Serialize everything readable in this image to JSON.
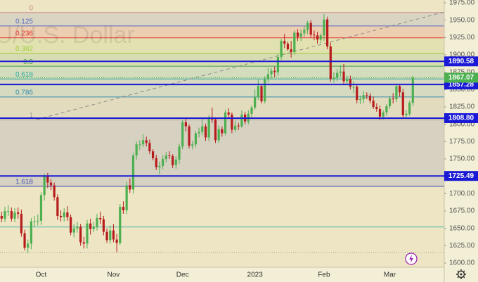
{
  "chart_data": {
    "type": "candlestick",
    "watermark": "XAU/U.S. Dollar",
    "ylim": [
      1594,
      1979
    ],
    "yticks": [
      {
        "value": 1600,
        "label": "1600.00"
      },
      {
        "value": 1625,
        "label": "1625.00"
      },
      {
        "value": 1650,
        "label": "1650.00"
      },
      {
        "value": 1675,
        "label": "1675.00"
      },
      {
        "value": 1700,
        "label": "1700.00"
      },
      {
        "value": 1725,
        "label": "1725.00"
      },
      {
        "value": 1750,
        "label": "1750.00"
      },
      {
        "value": 1775,
        "label": "1775.00"
      },
      {
        "value": 1800,
        "label": "1800.00"
      },
      {
        "value": 1825,
        "label": "1825.00"
      },
      {
        "value": 1850,
        "label": "1850.00"
      },
      {
        "value": 1875,
        "label": "1875.00"
      },
      {
        "value": 1900,
        "label": "1900.00"
      },
      {
        "value": 1925,
        "label": "1925.00"
      },
      {
        "value": 1950,
        "label": "1950.00"
      },
      {
        "value": 1975,
        "label": "1975.00"
      }
    ],
    "categories": [
      null,
      null,
      null,
      null,
      null,
      null,
      null,
      null,
      null,
      null,
      null,
      null,
      "Oct",
      null,
      null,
      null,
      null,
      null,
      null,
      null,
      null,
      null,
      null,
      null,
      null,
      null,
      null,
      null,
      null,
      null,
      null,
      null,
      null,
      null,
      "Nov",
      null,
      null,
      null,
      null,
      null,
      null,
      null,
      null,
      null,
      null,
      null,
      null,
      null,
      null,
      null,
      null,
      null,
      null,
      null,
      null,
      "Dec",
      null,
      null,
      null,
      null,
      null,
      null,
      null,
      null,
      null,
      null,
      null,
      null,
      null,
      null,
      null,
      null,
      null,
      null,
      null,
      null,
      null,
      "2023",
      null,
      null,
      null,
      null,
      null,
      null,
      null,
      null,
      null,
      null,
      null,
      null,
      null,
      null,
      null,
      null,
      null,
      null,
      null,
      null,
      "Feb",
      null,
      null,
      null,
      null,
      null,
      null,
      null,
      null,
      null,
      null,
      null,
      null,
      null,
      null,
      null,
      null,
      null,
      null,
      null,
      "Mar",
      null,
      null,
      null,
      null,
      null,
      null,
      null
    ],
    "candles": {
      "up_color": "#4caf50",
      "down_color": "#b71c1c",
      "open": [
        1668,
        1664,
        1675,
        1675,
        1664,
        1673,
        1671,
        1643,
        1622,
        1628,
        1660,
        1660,
        1661,
        1698,
        1725,
        1716,
        1712,
        1695,
        1668,
        1666,
        1673,
        1666,
        1644,
        1650,
        1652,
        1630,
        1628,
        1657,
        1649,
        1652,
        1665,
        1663,
        1645,
        1633,
        1647,
        1634,
        1629,
        1681,
        1676,
        1712,
        1706,
        1755,
        1771,
        1771,
        1777,
        1773,
        1761,
        1751,
        1738,
        1740,
        1750,
        1755,
        1754,
        1741,
        1749,
        1768,
        1803,
        1797,
        1769,
        1771,
        1787,
        1789,
        1797,
        1781,
        1810,
        1807,
        1777,
        1793,
        1787,
        1817,
        1814,
        1792,
        1798,
        1797,
        1814,
        1804,
        1815,
        1824,
        1839,
        1855,
        1833,
        1865,
        1872,
        1877,
        1875,
        1897,
        1920,
        1916,
        1908,
        1904,
        1932,
        1926,
        1931,
        1936,
        1946,
        1929,
        1928,
        1922,
        1928,
        1951,
        1912,
        1865,
        1867,
        1874,
        1876,
        1862,
        1865,
        1854,
        1854,
        1835,
        1836,
        1842,
        1841,
        1834,
        1825,
        1822,
        1811,
        1817,
        1826,
        1837,
        1836,
        1855,
        1846,
        1813,
        1815,
        1831
      ],
      "high": [
        1674,
        1681,
        1683,
        1680,
        1679,
        1680,
        1677,
        1648,
        1634,
        1665,
        1668,
        1670,
        1702,
        1729,
        1730,
        1721,
        1716,
        1699,
        1676,
        1679,
        1682,
        1670,
        1656,
        1659,
        1656,
        1638,
        1662,
        1664,
        1659,
        1671,
        1674,
        1668,
        1650,
        1654,
        1656,
        1642,
        1685,
        1689,
        1717,
        1722,
        1759,
        1775,
        1777,
        1786,
        1782,
        1778,
        1764,
        1756,
        1746,
        1755,
        1760,
        1761,
        1757,
        1754,
        1772,
        1806,
        1810,
        1800,
        1776,
        1790,
        1795,
        1808,
        1801,
        1813,
        1824,
        1810,
        1798,
        1797,
        1821,
        1823,
        1817,
        1805,
        1802,
        1820,
        1818,
        1820,
        1827,
        1850,
        1865,
        1858,
        1869,
        1881,
        1881,
        1883,
        1901,
        1923,
        1930,
        1919,
        1920,
        1935,
        1937,
        1937,
        1942,
        1949,
        1950,
        1935,
        1933,
        1931,
        1959,
        1955,
        1918,
        1875,
        1880,
        1885,
        1887,
        1870,
        1870,
        1862,
        1858,
        1841,
        1848,
        1846,
        1845,
        1840,
        1830,
        1827,
        1820,
        1829,
        1841,
        1845,
        1857,
        1858,
        1851,
        1820,
        1834,
        1870
      ],
      "low": [
        1659,
        1659,
        1668,
        1660,
        1659,
        1664,
        1638,
        1618,
        1614,
        1620,
        1652,
        1654,
        1655,
        1690,
        1708,
        1705,
        1690,
        1662,
        1660,
        1660,
        1661,
        1640,
        1637,
        1644,
        1625,
        1621,
        1621,
        1641,
        1645,
        1647,
        1656,
        1640,
        1629,
        1628,
        1630,
        1616,
        1626,
        1671,
        1670,
        1701,
        1700,
        1749,
        1763,
        1767,
        1768,
        1757,
        1748,
        1734,
        1728,
        1735,
        1745,
        1750,
        1737,
        1736,
        1743,
        1764,
        1790,
        1765,
        1764,
        1767,
        1781,
        1784,
        1776,
        1776,
        1802,
        1773,
        1773,
        1782,
        1784,
        1808,
        1787,
        1789,
        1792,
        1795,
        1800,
        1800,
        1810,
        1821,
        1835,
        1830,
        1830,
        1860,
        1866,
        1868,
        1870,
        1893,
        1910,
        1906,
        1896,
        1900,
        1920,
        1920,
        1926,
        1930,
        1925,
        1921,
        1916,
        1917,
        1920,
        1908,
        1861,
        1860,
        1862,
        1868,
        1858,
        1858,
        1850,
        1845,
        1830,
        1829,
        1830,
        1836,
        1830,
        1822,
        1818,
        1806,
        1807,
        1812,
        1822,
        1830,
        1832,
        1840,
        1810,
        1809,
        1812,
        1826
      ],
      "close": [
        1664,
        1675,
        1675,
        1664,
        1673,
        1671,
        1643,
        1622,
        1628,
        1660,
        1660,
        1661,
        1698,
        1725,
        1716,
        1712,
        1695,
        1668,
        1666,
        1673,
        1666,
        1644,
        1650,
        1652,
        1630,
        1628,
        1657,
        1649,
        1652,
        1665,
        1663,
        1645,
        1633,
        1647,
        1634,
        1629,
        1681,
        1676,
        1712,
        1706,
        1755,
        1771,
        1771,
        1777,
        1773,
        1761,
        1751,
        1738,
        1740,
        1750,
        1755,
        1754,
        1741,
        1749,
        1768,
        1803,
        1797,
        1769,
        1771,
        1787,
        1789,
        1797,
        1781,
        1810,
        1807,
        1777,
        1793,
        1787,
        1817,
        1814,
        1792,
        1798,
        1797,
        1814,
        1804,
        1815,
        1824,
        1839,
        1855,
        1833,
        1865,
        1872,
        1877,
        1875,
        1897,
        1920,
        1916,
        1908,
        1904,
        1932,
        1926,
        1931,
        1936,
        1946,
        1929,
        1928,
        1922,
        1928,
        1951,
        1912,
        1865,
        1867,
        1874,
        1876,
        1862,
        1865,
        1854,
        1854,
        1835,
        1836,
        1842,
        1841,
        1834,
        1825,
        1822,
        1811,
        1817,
        1826,
        1837,
        1836,
        1855,
        1846,
        1813,
        1815,
        1831,
        1867.07
      ]
    },
    "fib_levels": [
      {
        "ratio": 0,
        "price": 1961,
        "color": "#c98a8a"
      },
      {
        "ratio": 0.125,
        "price": 1941.7,
        "color": "#5c6bc0"
      },
      {
        "ratio": 0.236,
        "price": 1924.5,
        "color": "#e53935"
      },
      {
        "ratio": 0.382,
        "price": 1901.9,
        "color": "#9ccc3a"
      },
      {
        "ratio": 0.5,
        "price": 1883.6,
        "color": "#43a047"
      },
      {
        "ratio": 0.618,
        "price": 1865.3,
        "color": "#26a69a"
      },
      {
        "ratio": 0.786,
        "price": 1839.3,
        "color": "#3a8fb0"
      },
      {
        "ratio": 1,
        "price": 1806.2,
        "color": "#9e9e9e"
      },
      {
        "ratio": 1.618,
        "price": 1710.5,
        "color": "#3f51b5"
      }
    ],
    "levels": [
      1890.58,
      1857.28,
      {
        "value": 1808.8,
        "label": "1808.80"
      },
      {
        "value": 1725.49,
        "label": "1725.49"
      }
    ],
    "level_color": "#1a1ad6",
    "reference_lines": [
      {
        "value": 1652,
        "color": "#4db6ac",
        "dash": false
      },
      {
        "value": 1615,
        "color": "#9e9e9e",
        "dash": true
      }
    ]
  }
}
